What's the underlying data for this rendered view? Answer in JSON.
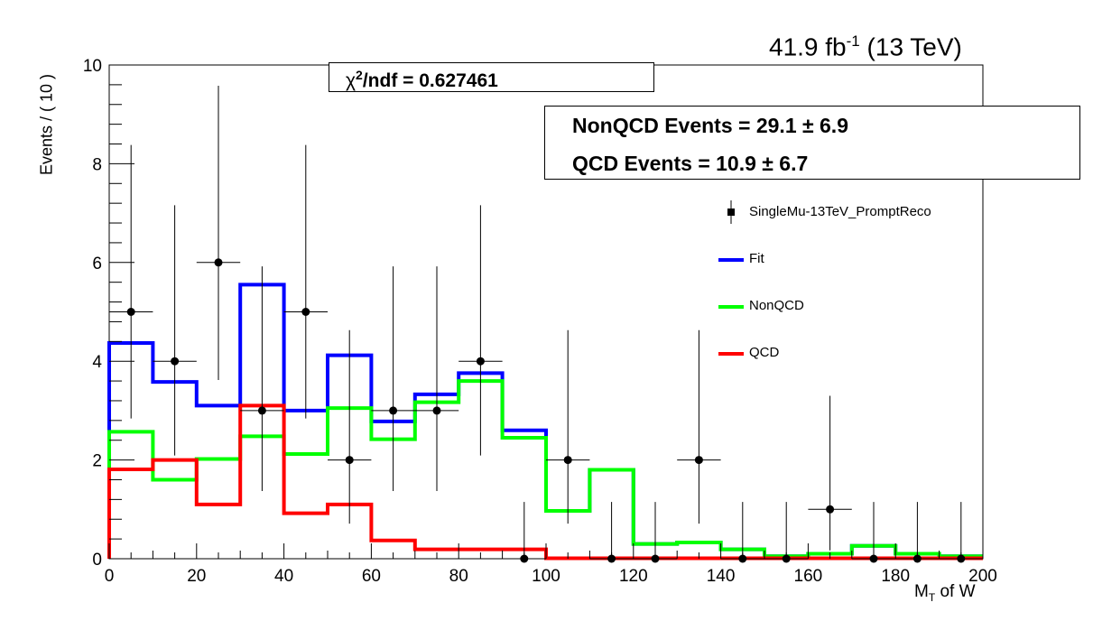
{
  "header": {
    "lumi_value": "41.9 fb",
    "lumi_exp": "-1",
    "lumi_energy": " (13 TeV)"
  },
  "fit_box": {
    "chi_prefix": "χ",
    "chi_exp": "2",
    "chi_rest": "/ndf = 0.627461"
  },
  "yields": {
    "nonqcd": "NonQCD Events =  29.1 ± 6.9",
    "qcd": "QCD Events =  10.9  ± 6.7"
  },
  "legend": [
    {
      "label": "SingleMu-13TeV_PromptReco",
      "kind": "marker",
      "color": "#000000"
    },
    {
      "label": "Fit",
      "kind": "line",
      "color": "#0000ff"
    },
    {
      "label": "NonQCD",
      "kind": "line",
      "color": "#00ff00"
    },
    {
      "label": "QCD",
      "kind": "line",
      "color": "#ff0000"
    }
  ],
  "axes": {
    "ylabel": "Events / ( 10 )",
    "xlabel_main": "M",
    "xlabel_sub": "T",
    "xlabel_rest": " of W"
  },
  "chart_data": {
    "type": "line",
    "title": "",
    "xlim": [
      0,
      200
    ],
    "ylim": [
      0,
      10
    ],
    "x_ticks": [
      "0",
      "20",
      "40",
      "60",
      "80",
      "100",
      "120",
      "140",
      "160",
      "180",
      "200"
    ],
    "y_ticks": [
      "0",
      "2",
      "4",
      "6",
      "8",
      "10"
    ],
    "bin_edges": [
      0,
      10,
      20,
      30,
      40,
      50,
      60,
      70,
      80,
      90,
      100,
      110,
      120,
      130,
      140,
      150,
      160,
      170,
      180,
      190,
      200
    ],
    "data": {
      "name": "SingleMu-13TeV_PromptReco",
      "x": [
        5,
        15,
        25,
        35,
        45,
        55,
        65,
        75,
        85,
        95,
        105,
        115,
        125,
        135,
        145,
        155,
        165,
        175,
        185,
        195
      ],
      "y": [
        5,
        4,
        6,
        3,
        5,
        2,
        3,
        3,
        4,
        0,
        2,
        0,
        0,
        2,
        0,
        0,
        1,
        0,
        0,
        0
      ],
      "err_up": [
        3.38,
        3.16,
        3.58,
        2.92,
        3.38,
        2.63,
        2.92,
        2.92,
        3.16,
        1.15,
        2.63,
        1.15,
        1.15,
        2.63,
        1.15,
        1.15,
        2.3,
        1.15,
        1.15,
        1.15
      ],
      "err_down": [
        2.16,
        1.91,
        2.38,
        1.63,
        2.16,
        1.29,
        1.63,
        1.63,
        1.91,
        0,
        1.29,
        0,
        0,
        1.29,
        0,
        0,
        0.83,
        0,
        0,
        0
      ]
    },
    "series": [
      {
        "name": "Fit",
        "color": "#0000ff",
        "values": [
          4.37,
          3.58,
          3.1,
          5.55,
          3.0,
          4.12,
          2.78,
          3.33,
          3.76,
          2.6,
          0.97,
          1.8,
          0.3,
          0.33,
          0.19,
          0.05,
          0.1,
          0.26,
          0.1,
          0.05
        ]
      },
      {
        "name": "NonQCD",
        "color": "#00ff00",
        "values": [
          2.57,
          1.6,
          2.02,
          2.48,
          2.12,
          3.05,
          2.42,
          3.17,
          3.6,
          2.45,
          0.97,
          1.8,
          0.3,
          0.33,
          0.19,
          0.05,
          0.1,
          0.26,
          0.1,
          0.05
        ]
      },
      {
        "name": "QCD",
        "color": "#ff0000",
        "values": [
          1.81,
          2.0,
          1.1,
          3.1,
          0.92,
          1.1,
          0.37,
          0.19,
          0.19,
          0.19,
          0.01,
          0.01,
          0.01,
          0.01,
          0.01,
          0.01,
          0.01,
          0.01,
          0.01,
          0.01
        ]
      }
    ]
  }
}
